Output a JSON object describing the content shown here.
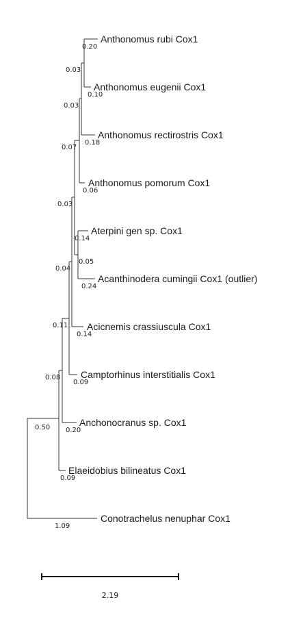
{
  "tree": {
    "taxa": [
      {
        "id": "t1",
        "label": "Anthonomus rubi Cox1",
        "branch_length": "0.20"
      },
      {
        "id": "t2",
        "label": "Anthonomus eugenii Cox1",
        "branch_length": "0.10"
      },
      {
        "id": "t3",
        "label": "Anthonomus rectirostris Cox1",
        "branch_length": "0.18"
      },
      {
        "id": "t4",
        "label": "Anthonomus pomorum Cox1",
        "branch_length": "0.06"
      },
      {
        "id": "t5",
        "label": "Aterpini gen sp. Cox1",
        "branch_length": "0.14"
      },
      {
        "id": "t6",
        "label": "Acanthinodera cumingii Cox1 (outlier)",
        "branch_length": "0.24"
      },
      {
        "id": "t7",
        "label": "Acicnemis crassiuscula Cox1",
        "branch_length": "0.14"
      },
      {
        "id": "t8",
        "label": "Camptorhinus interstitialis Cox1",
        "branch_length": "0.09"
      },
      {
        "id": "t9",
        "label": "Anchonocranus sp. Cox1",
        "branch_length": "0.20"
      },
      {
        "id": "t10",
        "label": "Elaeidobius bilineatus Cox1",
        "branch_length": "0.09"
      },
      {
        "id": "t11",
        "label": "Conotrachelus nenuphar Cox1",
        "branch_length": "1.09"
      }
    ],
    "internal_branches": [
      {
        "id": "n1",
        "branch_length": "0.03"
      },
      {
        "id": "n2",
        "branch_length": "0.03"
      },
      {
        "id": "n3",
        "branch_length": "0.07"
      },
      {
        "id": "n4",
        "branch_length": "0.05"
      },
      {
        "id": "n5",
        "branch_length": "0.03"
      },
      {
        "id": "n6",
        "branch_length": "0.04"
      },
      {
        "id": "n7",
        "branch_length": "0.11"
      },
      {
        "id": "n8",
        "branch_length": "0.08"
      },
      {
        "id": "n9",
        "branch_length": "0.50"
      }
    ],
    "scale_bar": {
      "label": "2.19"
    }
  }
}
